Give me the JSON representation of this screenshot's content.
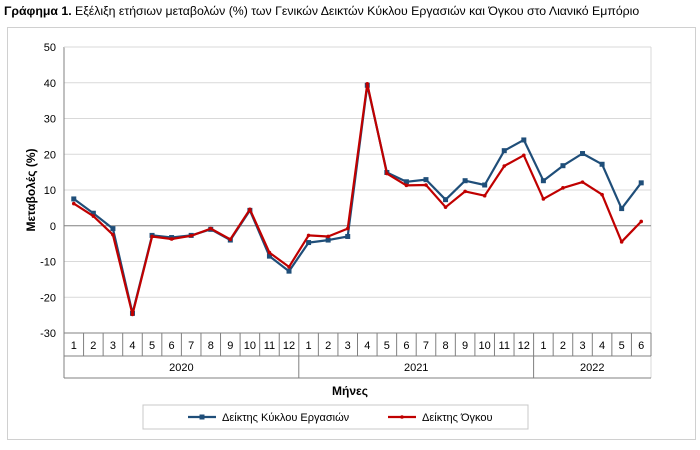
{
  "title": {
    "prefix": "Γράφημα 1.",
    "text": "Εξέλιξη ετήσιων μεταβολών (%) των Γενικών Δεικτών Κύκλου Εργασιών και Όγκου στο Λιανικό Εμπόριο"
  },
  "colors": {
    "series1": "#1f4e79",
    "series2": "#c00000",
    "grid": "#d9d9d9",
    "axis": "#808080"
  },
  "chart_data": {
    "type": "line",
    "ylabel": "Μεταβολές (%)",
    "xlabel": "Μήνες",
    "ylim": [
      -30,
      50
    ],
    "yticks": [
      "50",
      "40",
      "30",
      "20",
      "10",
      "0",
      "-10",
      "-20",
      "-30"
    ],
    "grid": true,
    "legend_position": "bottom",
    "categories": [
      "1",
      "2",
      "3",
      "4",
      "5",
      "6",
      "7",
      "8",
      "9",
      "10",
      "11",
      "12",
      "1",
      "2",
      "3",
      "4",
      "5",
      "6",
      "7",
      "8",
      "9",
      "10",
      "11",
      "12",
      "1",
      "2",
      "3",
      "4",
      "5",
      "6"
    ],
    "years": [
      {
        "label": "2020",
        "span": 12
      },
      {
        "label": "2021",
        "span": 12
      },
      {
        "label": "2022",
        "span": 6
      }
    ],
    "series": [
      {
        "name": "Δείκτης Κύκλου Εργασιών",
        "color": "#1f4e79",
        "values": [
          7.5,
          3.5,
          -0.8,
          -24.5,
          -2.7,
          -3.3,
          -2.7,
          -1.0,
          -4.0,
          4.3,
          -8.5,
          -12.7,
          -4.7,
          -4.0,
          -3.0,
          39.3,
          14.9,
          12.3,
          12.9,
          7.3,
          12.6,
          11.4,
          21.0,
          24.0,
          12.6,
          16.8,
          20.2,
          17.2,
          4.8,
          12.0
        ]
      },
      {
        "name": "Δείκτης Όγκου",
        "color": "#c00000",
        "values": [
          6.2,
          2.7,
          -2.5,
          -24.8,
          -3.0,
          -3.7,
          -2.8,
          -0.8,
          -3.8,
          4.6,
          -7.5,
          -11.5,
          -2.7,
          -3.0,
          -0.8,
          39.7,
          14.6,
          11.3,
          11.4,
          5.2,
          9.6,
          8.4,
          16.7,
          19.7,
          7.5,
          10.6,
          12.2,
          8.7,
          -4.5,
          1.2
        ]
      }
    ]
  }
}
